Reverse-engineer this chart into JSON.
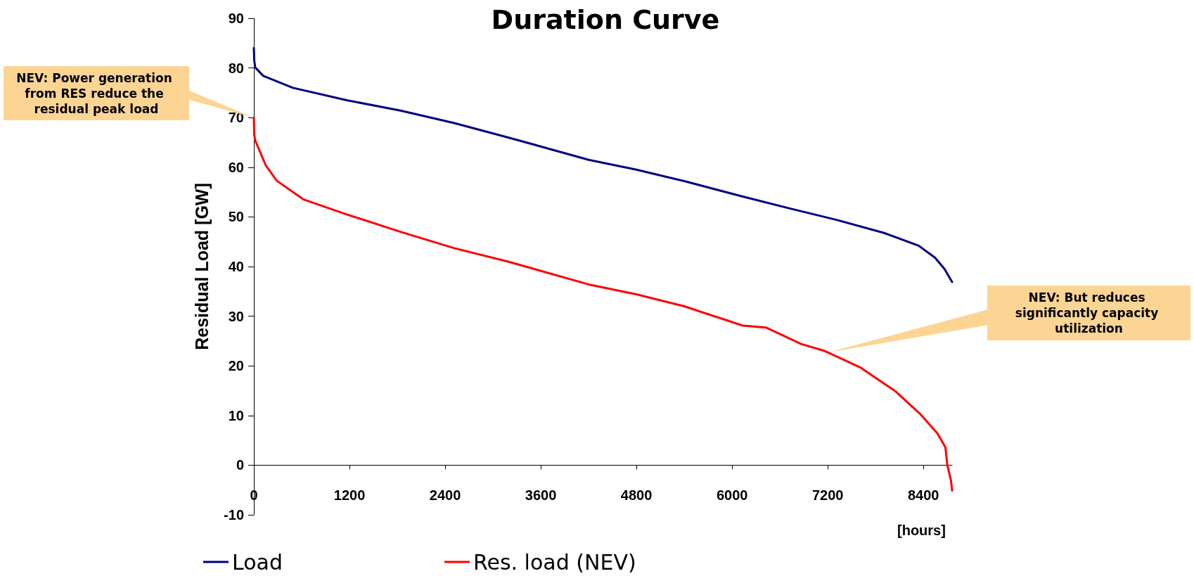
{
  "chart_data": {
    "type": "line",
    "title": "Duration Curve",
    "ylabel": "Residual Load [GW]",
    "xlabel": "[hours]",
    "xlim": [
      0,
      8760
    ],
    "xticks": [
      0,
      1200,
      2400,
      3600,
      4800,
      6000,
      7200,
      8400
    ],
    "ylim": [
      -10,
      90
    ],
    "yticks": [
      -10,
      0,
      10,
      20,
      30,
      40,
      50,
      60,
      70,
      80,
      90
    ],
    "grid": false,
    "legend": "bottom left",
    "marker": "none",
    "line_style": "solid",
    "annotations": [
      {
        "text": "NEV: Power generation from RES reduce the residual peak load",
        "x": 0,
        "y": 70
      },
      {
        "text": "NEV: But reduces significantly capacity utilization",
        "x": 7200,
        "y": 22.7
      }
    ],
    "series": [
      {
        "name": "Load",
        "color": "#000080",
        "x": [
          0,
          5,
          17,
          118,
          490,
          1165,
          1840,
          2515,
          3190,
          4200,
          4800,
          5400,
          6135,
          6723,
          7310,
          7900,
          8341,
          8544,
          8665,
          8760
        ],
        "values": [
          84,
          81.5,
          80.1,
          78.4,
          76,
          73.5,
          71.4,
          68.9,
          66,
          61.5,
          59.5,
          57.2,
          54.1,
          51.7,
          49.4,
          46.8,
          44.2,
          41.8,
          39.5,
          36.9
        ]
      },
      {
        "name": "Res. load (NEV)",
        "color": "#ff0000",
        "x": [
          0,
          5,
          17,
          152,
          287,
          625,
          1165,
          1840,
          2515,
          3190,
          4200,
          4800,
          5400,
          6135,
          6429,
          6867,
          7162,
          7606,
          8047,
          8367,
          8576,
          8676,
          8700,
          8745,
          8760
        ],
        "values": [
          70,
          66.5,
          65.4,
          60.3,
          57.3,
          53.5,
          50.5,
          47,
          43.7,
          41,
          36.4,
          34.4,
          32,
          28.1,
          27.7,
          24.4,
          23,
          19.7,
          14.9,
          10.2,
          6.4,
          3.6,
          0,
          -3,
          -5.1
        ]
      }
    ]
  }
}
